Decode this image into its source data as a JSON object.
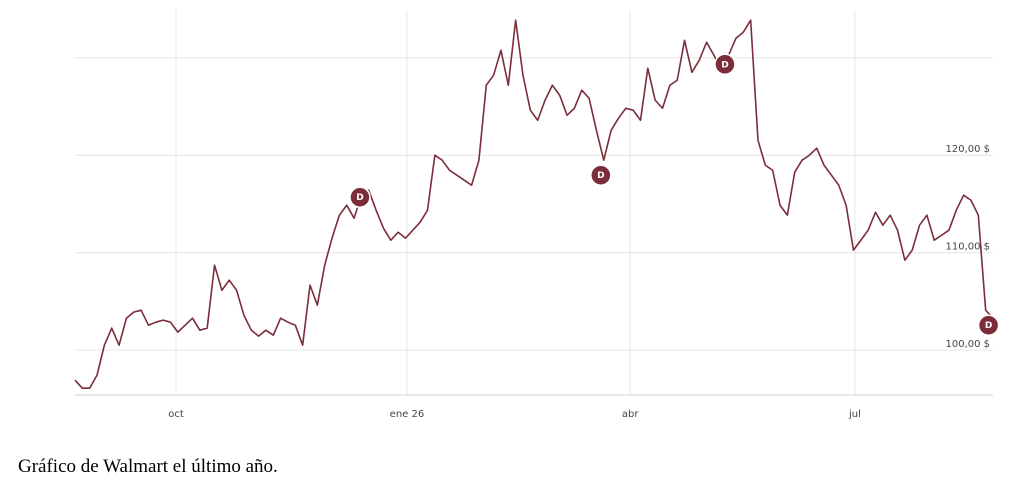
{
  "chart_data": {
    "type": "line",
    "caption": "Gráfico de Walmart el último año.",
    "color": "#7b2d3a",
    "grid": true,
    "xlim": [
      0,
      125
    ],
    "ylim": [
      95.4,
      134.9
    ],
    "xticks": [
      {
        "value": 13.75,
        "label": "oct"
      },
      {
        "value": 45.2,
        "label": "ene 26"
      },
      {
        "value": 75.6,
        "label": "abr"
      },
      {
        "value": 106.2,
        "label": "jul"
      }
    ],
    "yticks": [
      {
        "value": 100,
        "label": "100,00 $"
      },
      {
        "value": 110,
        "label": "110,00 $"
      },
      {
        "value": 120,
        "label": "120,00 $"
      }
    ],
    "ygrid": [
      100,
      110,
      120,
      130
    ],
    "x": [
      0,
      1,
      2,
      3,
      4,
      5,
      6,
      7,
      8,
      9,
      10,
      11,
      12,
      13,
      14,
      15,
      16,
      17,
      18,
      19,
      20,
      21,
      22,
      23,
      24,
      25,
      26,
      27,
      28,
      29,
      30,
      31,
      32,
      33,
      34,
      35,
      36,
      37,
      38,
      39,
      40,
      41,
      42,
      43,
      44,
      45,
      46,
      47,
      48,
      49,
      50,
      51,
      52,
      53,
      54,
      55,
      56,
      57,
      58,
      59,
      60,
      61,
      62,
      63,
      64,
      65,
      66,
      67,
      68,
      69,
      70,
      71,
      72,
      73,
      74,
      75,
      76,
      77,
      78,
      79,
      80,
      81,
      82,
      83,
      84,
      85,
      86,
      87,
      88,
      89,
      90,
      91,
      92,
      93,
      94,
      95,
      96,
      97,
      98,
      99,
      100,
      101,
      102,
      103,
      104,
      105,
      106,
      107,
      108,
      109,
      110,
      111,
      112,
      113,
      114,
      115,
      116,
      117,
      118,
      119,
      120,
      121,
      122,
      123,
      124,
      125
    ],
    "values": [
      96.92,
      96.1,
      96.1,
      97.44,
      100.51,
      102.26,
      100.51,
      103.28,
      103.9,
      104.1,
      102.56,
      102.87,
      103.08,
      102.87,
      101.85,
      102.56,
      103.28,
      102.05,
      102.26,
      108.72,
      106.15,
      107.18,
      106.15,
      103.59,
      102.05,
      101.44,
      102.05,
      101.54,
      103.28,
      102.87,
      102.56,
      100.51,
      106.67,
      104.62,
      108.72,
      111.49,
      113.85,
      114.87,
      113.54,
      115.9,
      116.41,
      114.36,
      112.51,
      111.28,
      112.1,
      111.49,
      112.31,
      113.13,
      114.36,
      120.0,
      119.49,
      118.46,
      117.95,
      117.44,
      116.92,
      119.49,
      127.18,
      128.21,
      130.77,
      127.18,
      133.85,
      128.21,
      124.62,
      123.59,
      125.64,
      127.18,
      126.15,
      124.1,
      124.82,
      126.67,
      125.85,
      122.56,
      119.49,
      122.56,
      123.79,
      124.82,
      124.62,
      123.59,
      128.92,
      125.64,
      124.82,
      127.18,
      127.69,
      131.79,
      128.51,
      129.74,
      131.59,
      130.26,
      128.72,
      130.26,
      132.0,
      132.62,
      133.85,
      121.54,
      118.97,
      118.46,
      114.87,
      113.85,
      118.26,
      119.49,
      120.0,
      120.72,
      118.97,
      117.95,
      116.92,
      114.87,
      110.26,
      111.28,
      112.31,
      114.15,
      112.82,
      113.85,
      112.31,
      109.23,
      110.26,
      112.82,
      113.85,
      111.28,
      111.79,
      112.31,
      114.36,
      115.9,
      115.38,
      113.85,
      104.1,
      103.28
    ],
    "annotations": [
      {
        "x": 38.8,
        "y": 115.69,
        "text": "D"
      },
      {
        "x": 71.6,
        "y": 117.95,
        "text": "D"
      },
      {
        "x": 88.5,
        "y": 129.33,
        "text": "D"
      },
      {
        "x": 124.4,
        "y": 102.56,
        "text": "D"
      }
    ]
  }
}
